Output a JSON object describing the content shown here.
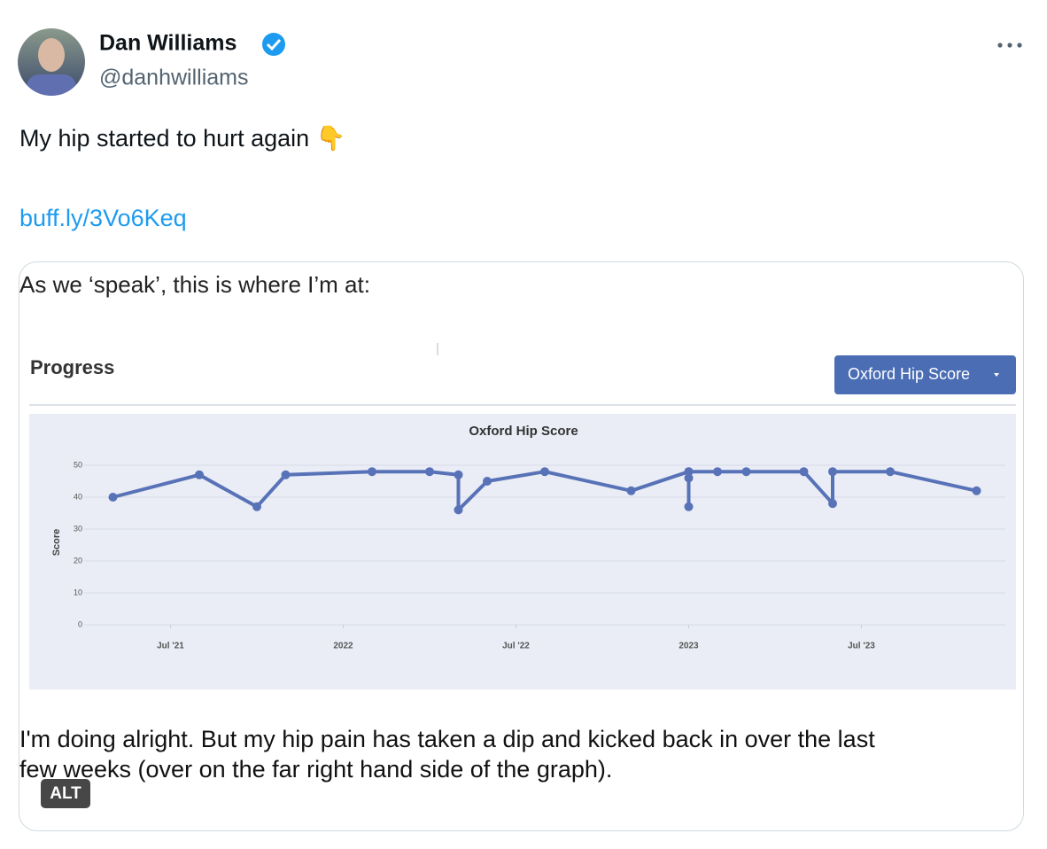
{
  "tweet": {
    "author": {
      "name": "Dan Williams",
      "handle": "@danhwilliams"
    },
    "text": "My hip started to hurt again 👇",
    "link": "buff.ly/3Vo6Keq",
    "media": {
      "caption_top": "As we ‘speak’, this is where I’m at:",
      "section_title": "Progress",
      "dropdown": "Oxford Hip Score",
      "caption_bottom": [
        "I'm doing alright. But my hip pain has taken a dip and kicked back in over the last",
        "few weeks (over on the far right hand side of the graph)."
      ],
      "badge": "ALT"
    }
  },
  "chart_data": {
    "type": "line",
    "title": "Oxford Hip Score",
    "y_label": "Score",
    "x": [
      "2021-05",
      "2021-08",
      "2021-10",
      "2021-11",
      "2022-02",
      "2022-04",
      "2022-05",
      "2022-05",
      "2022-06",
      "2022-08",
      "2022-11",
      "2023-01",
      "2023-01",
      "2023-01",
      "2023-01",
      "2023-02",
      "2023-03",
      "2023-05",
      "2023-06",
      "2023-06",
      "2023-08",
      "2023-11"
    ],
    "values": [
      40,
      47,
      37,
      47,
      48,
      48,
      47,
      36,
      45,
      48,
      42,
      48,
      37,
      46,
      48,
      48,
      48,
      48,
      38,
      48,
      48,
      42
    ],
    "color": "#5872b8",
    "xlim": [
      "2021-04",
      "2023-12"
    ],
    "ylim": [
      0,
      55
    ],
    "xticks": [
      {
        "value": "2021-07",
        "label": "Jul '21"
      },
      {
        "value": "2022-01",
        "label": "2022"
      },
      {
        "value": "2022-07",
        "label": "Jul '22"
      },
      {
        "value": "2023-01",
        "label": "2023"
      },
      {
        "value": "2023-07",
        "label": "Jul '23"
      }
    ],
    "yticks": [
      0,
      10,
      20,
      30,
      40,
      50
    ],
    "grid": true
  }
}
